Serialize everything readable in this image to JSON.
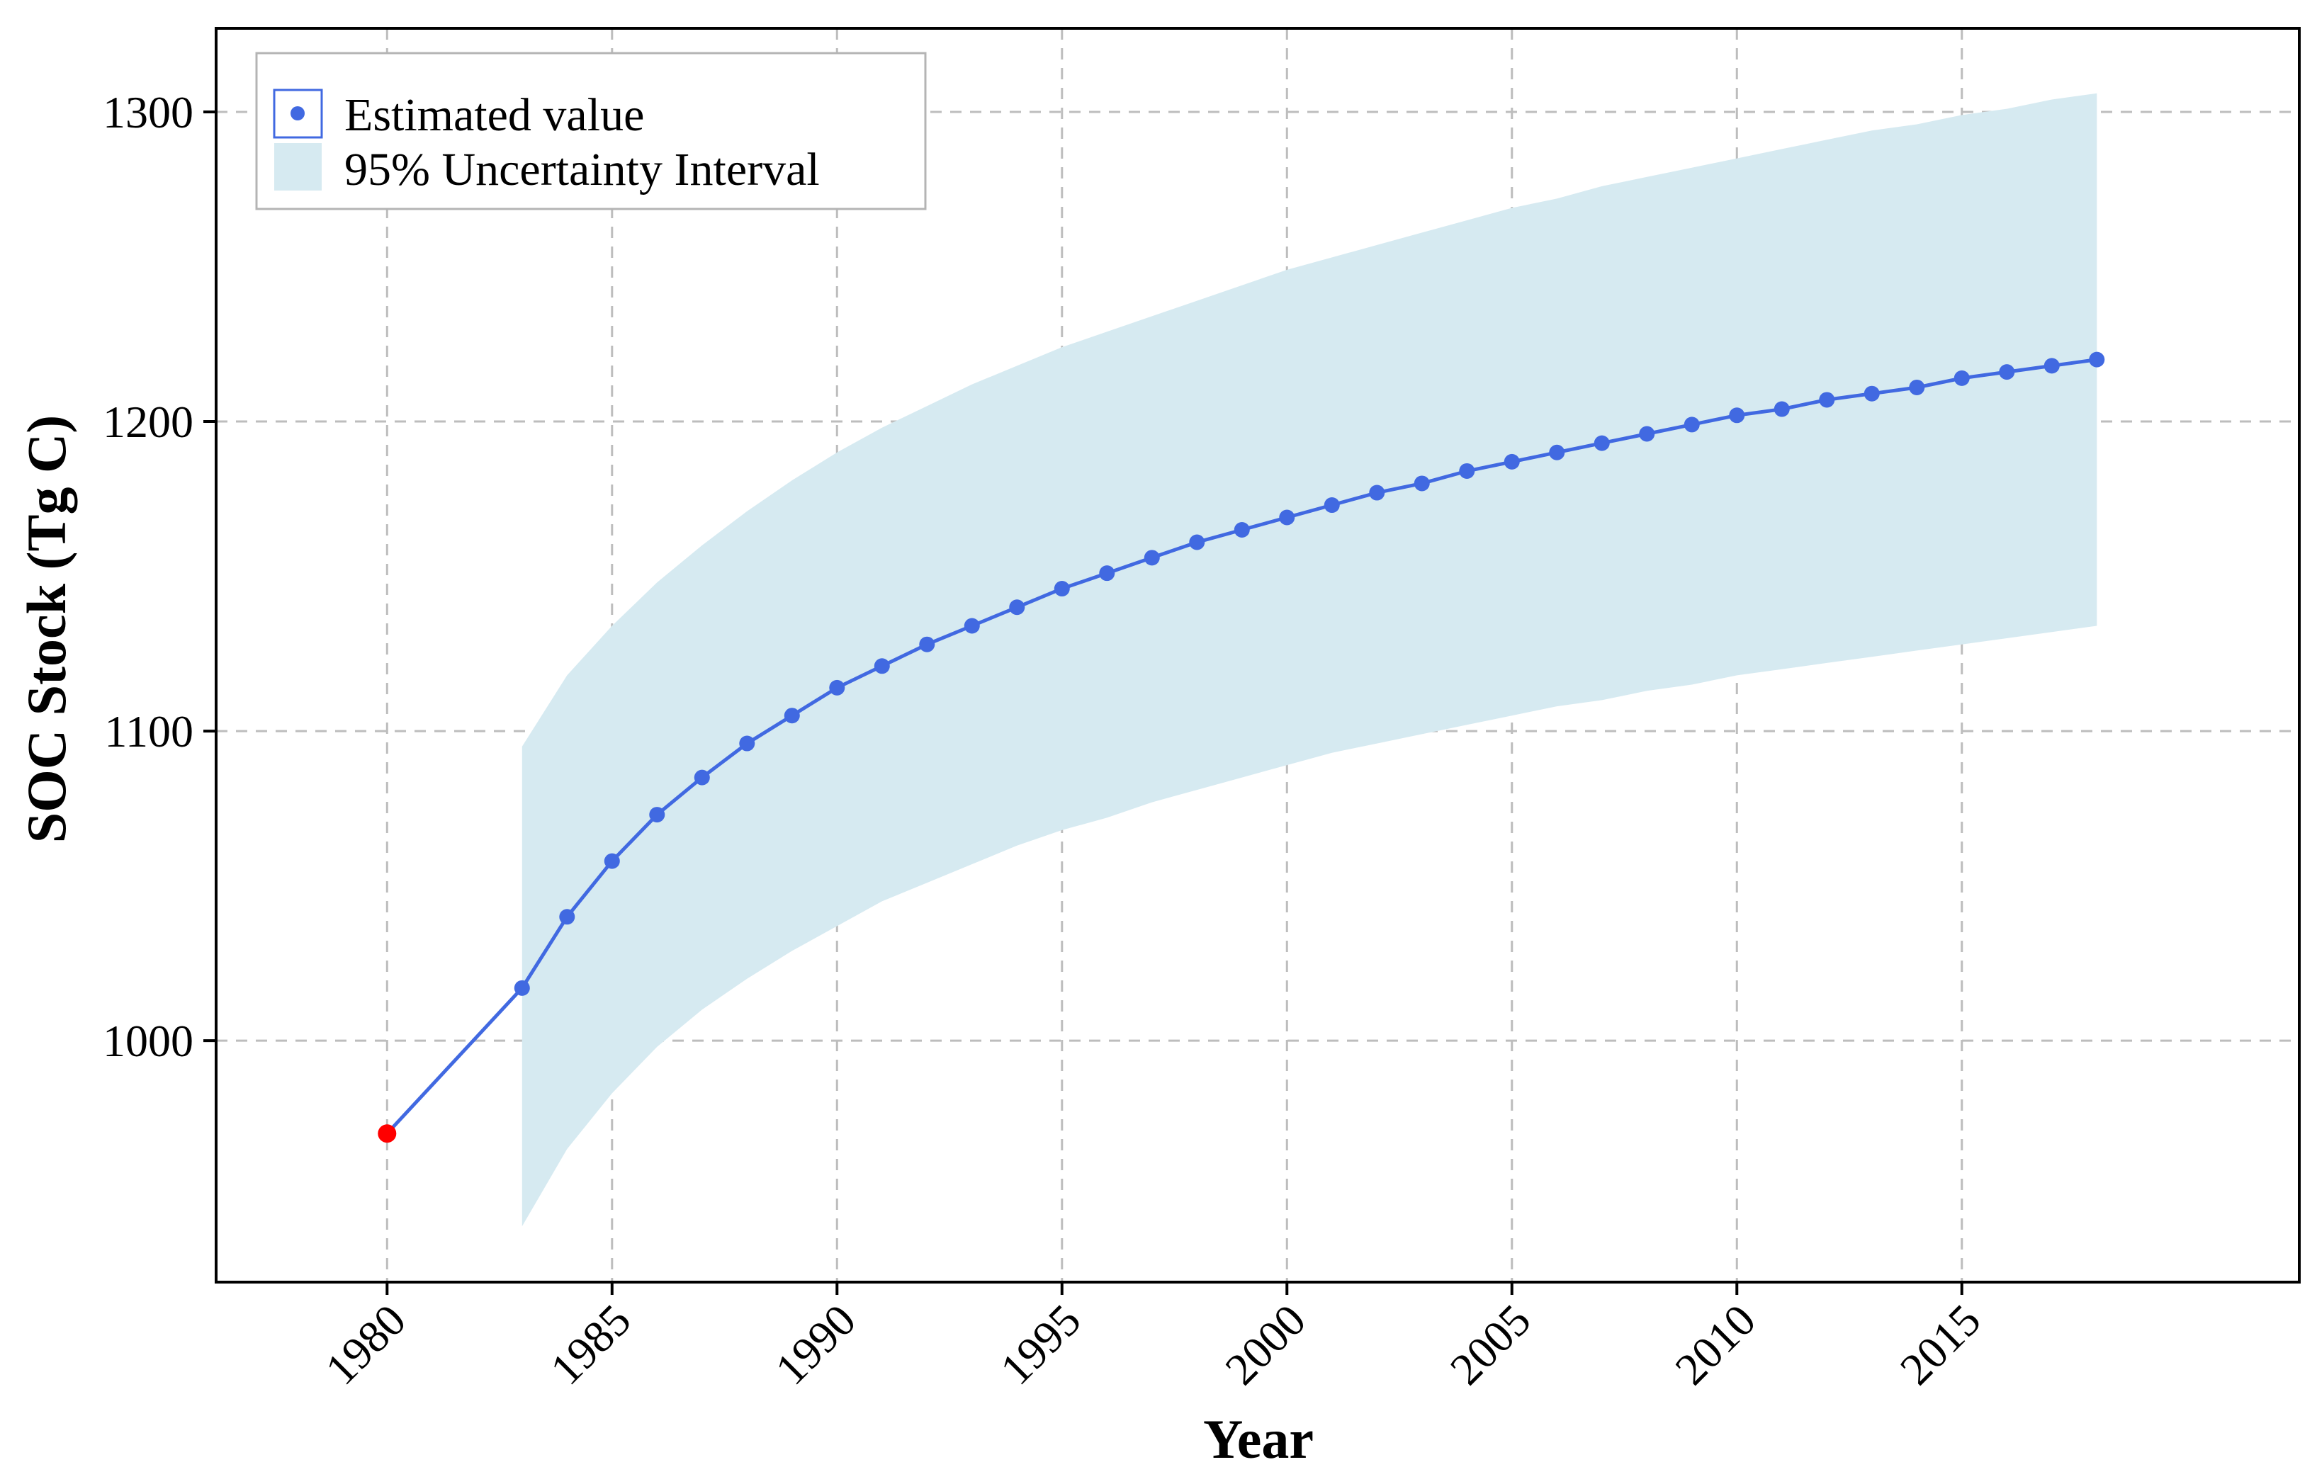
{
  "chart_data": {
    "type": "line",
    "title": "",
    "xlabel": "Year",
    "ylabel": "SOC Stock (Tg C)",
    "xlim": [
      1976.2,
      2022.5
    ],
    "ylim": [
      922,
      1327
    ],
    "x_ticks": [
      1980,
      1985,
      1990,
      1995,
      2000,
      2005,
      2010,
      2015
    ],
    "y_ticks": [
      1000,
      1100,
      1200,
      1300
    ],
    "grid": true,
    "legend_position": "top-left",
    "legend": [
      {
        "label": "Estimated value",
        "kind": "point-line"
      },
      {
        "label": "95% Uncertainty Interval",
        "kind": "band"
      }
    ],
    "series": [
      {
        "name": "Estimated value",
        "color": "#4169e1",
        "x": [
          1980,
          1983,
          1984,
          1985,
          1986,
          1987,
          1988,
          1989,
          1990,
          1991,
          1992,
          1993,
          1994,
          1995,
          1996,
          1997,
          1998,
          1999,
          2000,
          2001,
          2002,
          2003,
          2004,
          2005,
          2006,
          2007,
          2008,
          2009,
          2010,
          2011,
          2012,
          2013,
          2014,
          2015,
          2016,
          2017,
          2018
        ],
        "y": [
          970,
          1017,
          1040,
          1058,
          1073,
          1085,
          1096,
          1105,
          1114,
          1121,
          1128,
          1134,
          1140,
          1146,
          1151,
          1156,
          1161,
          1165,
          1169,
          1173,
          1177,
          1180,
          1184,
          1187,
          1190,
          1193,
          1196,
          1199,
          1202,
          1204,
          1207,
          1209,
          1211,
          1214,
          1216,
          1218,
          1220
        ]
      }
    ],
    "highlight_point": {
      "x": 1980,
      "y": 970,
      "color": "#ff0000"
    },
    "band": {
      "name": "95% Uncertainty Interval",
      "color": "#d6eaf1",
      "x": [
        1983,
        1984,
        1985,
        1986,
        1987,
        1988,
        1989,
        1990,
        1991,
        1992,
        1993,
        1994,
        1995,
        1996,
        1997,
        1998,
        1999,
        2000,
        2001,
        2002,
        2003,
        2004,
        2005,
        2006,
        2007,
        2008,
        2009,
        2010,
        2011,
        2012,
        2013,
        2014,
        2015,
        2016,
        2017,
        2018
      ],
      "lower": [
        940,
        965,
        983,
        998,
        1010,
        1020,
        1029,
        1037,
        1045,
        1051,
        1057,
        1063,
        1068,
        1072,
        1077,
        1081,
        1085,
        1089,
        1093,
        1096,
        1099,
        1102,
        1105,
        1108,
        1110,
        1113,
        1115,
        1118,
        1120,
        1122,
        1124,
        1126,
        1128,
        1130,
        1132,
        1134
      ],
      "upper": [
        1095,
        1118,
        1134,
        1148,
        1160,
        1171,
        1181,
        1190,
        1198,
        1205,
        1212,
        1218,
        1224,
        1229,
        1234,
        1239,
        1244,
        1249,
        1253,
        1257,
        1261,
        1265,
        1269,
        1272,
        1276,
        1279,
        1282,
        1285,
        1288,
        1291,
        1294,
        1296,
        1299,
        1301,
        1304,
        1306
      ]
    }
  }
}
